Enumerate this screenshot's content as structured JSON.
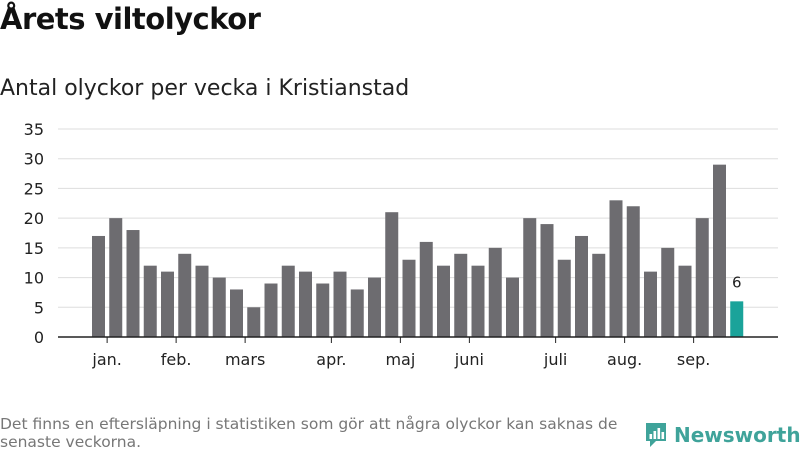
{
  "header": {
    "title": "Årets viltolyckor",
    "subtitle": "Antal olyckor per vecka i Kristianstad"
  },
  "footer": {
    "note": "Det finns en eftersläpning i statistiken som gör att några olyckor kan saknas de senaste veckorna.",
    "brand": "Newsworthy"
  },
  "colors": {
    "bar": "#6d6c70",
    "highlight": "#1aa39a",
    "grid": "#dddddd",
    "axis": "#222222",
    "brand": "#3fa39a"
  },
  "chart_data": {
    "type": "bar",
    "title": "Antal olyckor per vecka i Kristianstad",
    "xlabel": "",
    "ylabel": "",
    "ylim": [
      0,
      35
    ],
    "yticks": [
      0,
      5,
      10,
      15,
      20,
      25,
      30,
      35
    ],
    "grid": true,
    "values": [
      17,
      20,
      18,
      12,
      11,
      14,
      12,
      10,
      8,
      5,
      9,
      12,
      11,
      9,
      11,
      8,
      10,
      21,
      13,
      16,
      12,
      14,
      12,
      15,
      10,
      20,
      19,
      13,
      17,
      14,
      23,
      22,
      11,
      15,
      12,
      20,
      29,
      6
    ],
    "highlight_index": 37,
    "highlight_label": "6",
    "month_labels": [
      {
        "label": "jan.",
        "bar_index": 0.5
      },
      {
        "label": "feb.",
        "bar_index": 4.5
      },
      {
        "label": "mars",
        "bar_index": 8.5
      },
      {
        "label": "apr.",
        "bar_index": 13.5
      },
      {
        "label": "maj",
        "bar_index": 17.5
      },
      {
        "label": "juni",
        "bar_index": 21.5
      },
      {
        "label": "juli",
        "bar_index": 26.5
      },
      {
        "label": "aug.",
        "bar_index": 30.5
      },
      {
        "label": "sep.",
        "bar_index": 34.5
      }
    ]
  }
}
